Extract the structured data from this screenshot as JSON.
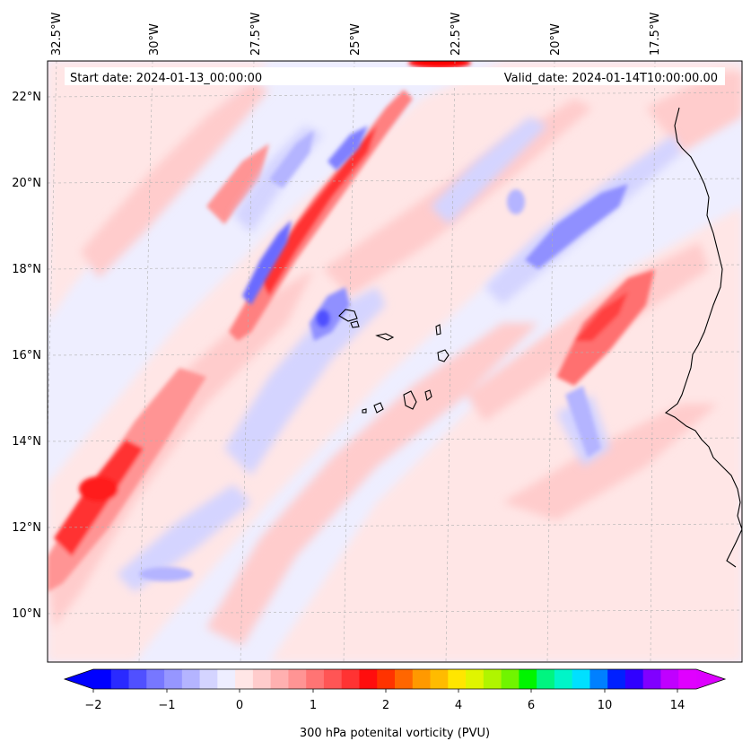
{
  "map": {
    "lon_labels": [
      "32.5°W",
      "30°W",
      "27.5°W",
      "25°W",
      "22.5°W",
      "20°W",
      "17.5°W"
    ],
    "lat_labels": [
      "22°N",
      "20°N",
      "18°N",
      "16°N",
      "14°N",
      "12°N",
      "10°N"
    ],
    "start_date_text": "Start date: 2024-01-13_00:00:00",
    "valid_date_text": "Valid_date: 2024-01-14T10:00:00.00",
    "grid": true,
    "coastline_color": "#000000",
    "background_fill": "#eeeeff"
  },
  "colorbar": {
    "ticks": [
      "−2",
      "−1",
      "0",
      "1",
      "2",
      "4",
      "6",
      "10",
      "14"
    ],
    "label": "300 hPa potenital vorticity (PVU)",
    "extend": "both",
    "colors": [
      "#0000ff",
      "#2a2aff",
      "#5050ff",
      "#7777ff",
      "#9696ff",
      "#b4b4ff",
      "#d4d4ff",
      "#eeeeff",
      "#ffe6e6",
      "#ffcccc",
      "#ffb0b0",
      "#ff9494",
      "#ff7474",
      "#ff5555",
      "#ff3333",
      "#ff0d0d",
      "#ff3300",
      "#ff6600",
      "#ff9900",
      "#ffbb00",
      "#ffe600",
      "#e0f500",
      "#b0f500",
      "#70f500",
      "#00f500",
      "#00f580",
      "#00f5c8",
      "#00e0ff",
      "#0080ff",
      "#0020ff",
      "#3000ff",
      "#8000ff",
      "#c000ff",
      "#e000ff"
    ],
    "under_color": "#0000ff",
    "over_color": "#dd00ff"
  }
}
